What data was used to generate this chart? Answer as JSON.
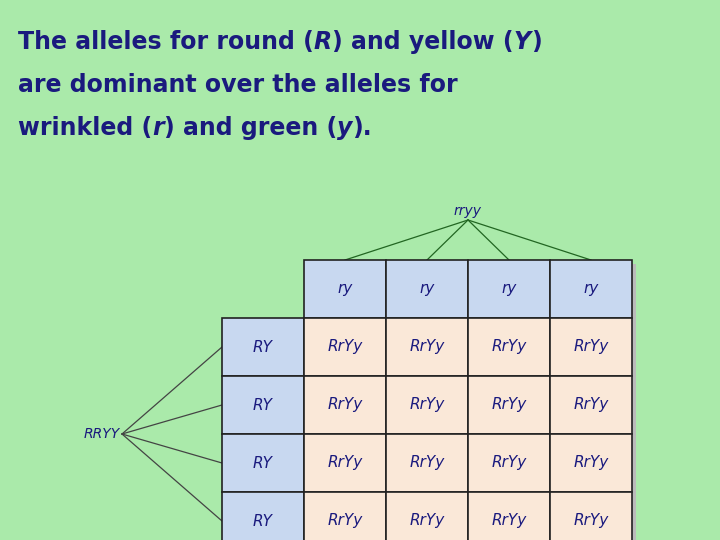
{
  "bg_color": "#aaeaaa",
  "title_color": "#1a1a7e",
  "title_fontsize": 17,
  "col_headers": [
    "ry",
    "ry",
    "ry",
    "ry"
  ],
  "row_headers": [
    "RY",
    "RY",
    "RY",
    "RY"
  ],
  "cell_value": "RrYy",
  "parent_top": "rryy",
  "parent_left": "RRYY",
  "header_bg": "#c8d8f0",
  "cell_bg": "#fae8d8",
  "border_color": "#222222",
  "line_color_top": "#226622",
  "line_color_left": "#444444",
  "shadow_color": "#bbbbbb",
  "cell_fontsize": 11,
  "header_fontsize": 11,
  "parent_fontsize": 10
}
